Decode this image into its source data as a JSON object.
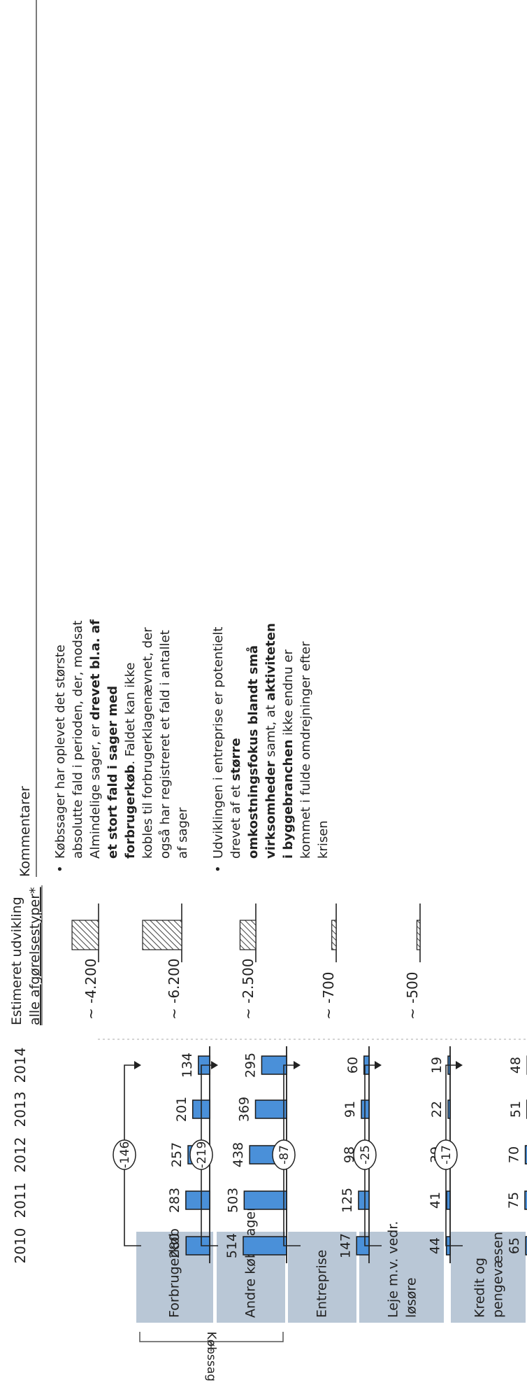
{
  "chart_data": {
    "type": "bar",
    "years": [
      "2010",
      "2011",
      "2012",
      "2013",
      "2014"
    ],
    "categories": [
      "Forbrugerkøb",
      "Andre købssager",
      "Entreprise",
      "Leje m.v. vedr. løsøre",
      "Kredit og pengevæsen"
    ],
    "series": [
      {
        "values": [
          280,
          283,
          257,
          201,
          134
        ]
      },
      {
        "values": [
          514,
          503,
          438,
          369,
          295
        ]
      },
      {
        "values": [
          147,
          125,
          98,
          91,
          60
        ]
      },
      {
        "values": [
          44,
          41,
          39,
          22,
          19
        ]
      },
      {
        "values": [
          65,
          75,
          70,
          51,
          48
        ]
      }
    ],
    "changes": [
      "-146",
      "-219",
      "-87",
      "-25",
      "-17"
    ],
    "estimates": [
      "~ -4.200",
      "~ -6.200",
      "~ -2.500",
      "~ -700",
      "~ -500"
    ],
    "estimate_values": [
      -4200,
      -6200,
      -2500,
      -700,
      -500
    ],
    "estimate_header": [
      "Estimeret udvikling",
      "alle afgørelsestyper*"
    ],
    "group_label": "Købssager",
    "comments_header": "Kommentarer",
    "colors": {
      "bar": "#4a90d9",
      "label_box": "#b9c7d6",
      "hatch": "#444444"
    }
  },
  "comments": {
    "c1": [
      [
        {
          "t": "Købssager har oplevet det største",
          "b": false
        }
      ],
      [
        {
          "t": "absolutte fald i perioden, der, modsat",
          "b": false
        }
      ],
      [
        {
          "t": "Almindelige sager, er ",
          "b": false
        },
        {
          "t": "drevet bl.a. af",
          "b": true
        }
      ],
      [
        {
          "t": "et stort fald i sager med",
          "b": true
        }
      ],
      [
        {
          "t": "forbrugerkøb",
          "b": true
        },
        {
          "t": ". Faldet kan ikke",
          "b": false
        }
      ],
      [
        {
          "t": "kobles til forbrugerklagenævnet, der",
          "b": false
        }
      ],
      [
        {
          "t": "også har registreret et fald i antallet",
          "b": false
        }
      ],
      [
        {
          "t": "af sager",
          "b": false
        }
      ]
    ],
    "c2": [
      [
        {
          "t": "Udviklingen i entreprise er potentielt",
          "b": false
        }
      ],
      [
        {
          "t": "drevet af et ",
          "b": false
        },
        {
          "t": "større",
          "b": true
        }
      ],
      [
        {
          "t": "omkostningsfokus blandt små",
          "b": true
        }
      ],
      [
        {
          "t": "virksomheder",
          "b": true
        },
        {
          "t": " samt, at ",
          "b": false
        },
        {
          "t": "aktiviteten",
          "b": true
        }
      ],
      [
        {
          "t": "i byggebranchen",
          "b": true
        },
        {
          "t": " ikke endnu er",
          "b": false
        }
      ],
      [
        {
          "t": "kommet i fulde omdrejninger efter",
          "b": false
        }
      ],
      [
        {
          "t": "krisen",
          "b": false
        }
      ]
    ]
  }
}
